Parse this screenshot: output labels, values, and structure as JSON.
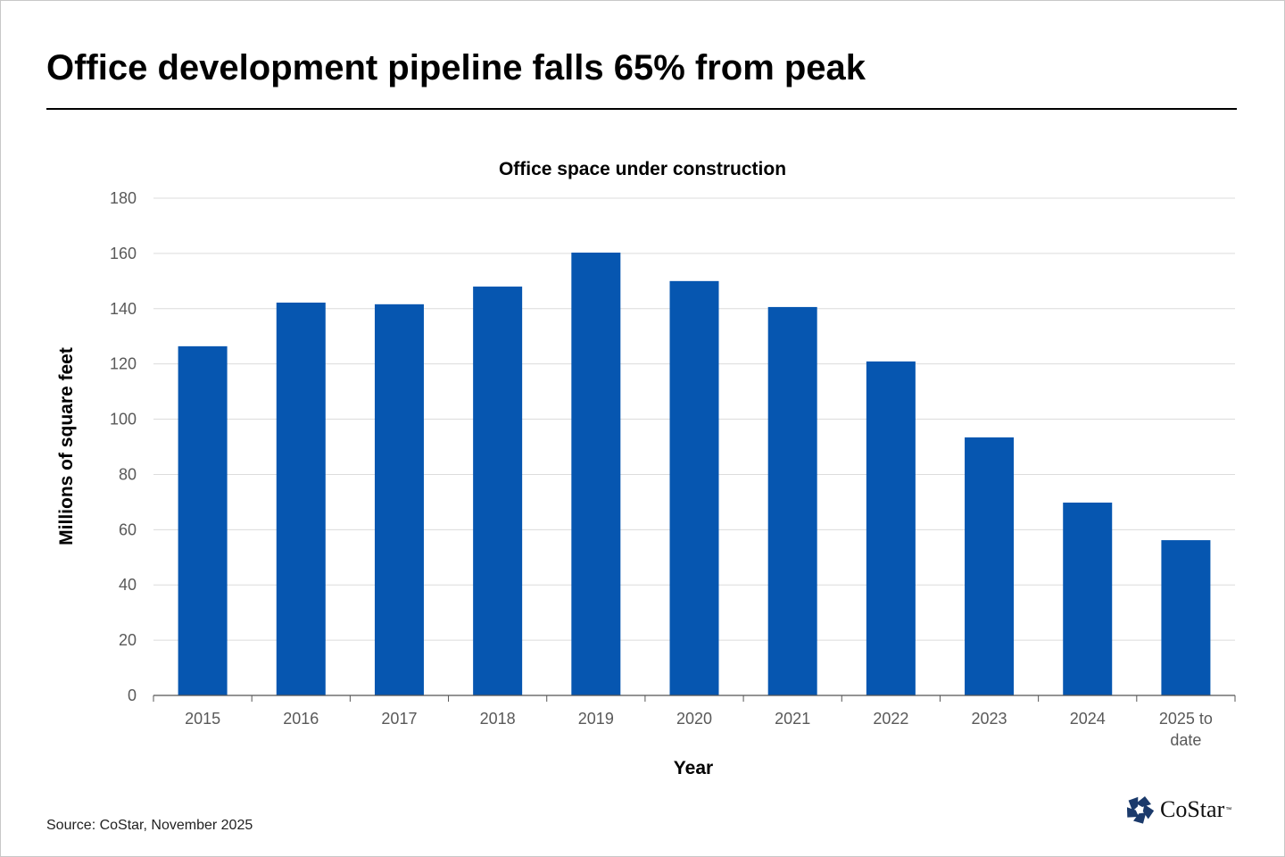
{
  "headline": "Office development pipeline falls 65% from peak",
  "source": "Source: CoStar, November 2025",
  "logo": {
    "name": "CoStar",
    "tm": "™",
    "icon": "costar-star-icon",
    "color": "#1b3a6b"
  },
  "colors": {
    "bar": "#0656b0",
    "grid": "#dcdcdc",
    "axis": "#555555"
  },
  "chart_data": {
    "type": "bar",
    "title": "Office space under construction",
    "xlabel": "Year",
    "ylabel": "Millions of square feet",
    "ylim": [
      0,
      180
    ],
    "yticks": [
      0,
      20,
      40,
      60,
      80,
      100,
      120,
      140,
      160,
      180
    ],
    "grid": true,
    "categories": [
      "2015",
      "2016",
      "2017",
      "2018",
      "2019",
      "2020",
      "2021",
      "2022",
      "2023",
      "2024",
      "2025 to date"
    ],
    "category_lines": [
      [
        "2015"
      ],
      [
        "2016"
      ],
      [
        "2017"
      ],
      [
        "2018"
      ],
      [
        "2019"
      ],
      [
        "2020"
      ],
      [
        "2021"
      ],
      [
        "2022"
      ],
      [
        "2023"
      ],
      [
        "2024"
      ],
      [
        "2025 to",
        "date"
      ]
    ],
    "values": [
      126.4,
      142.2,
      141.6,
      148.0,
      160.3,
      150.0,
      140.6,
      120.9,
      93.4,
      69.8,
      56.2
    ]
  }
}
